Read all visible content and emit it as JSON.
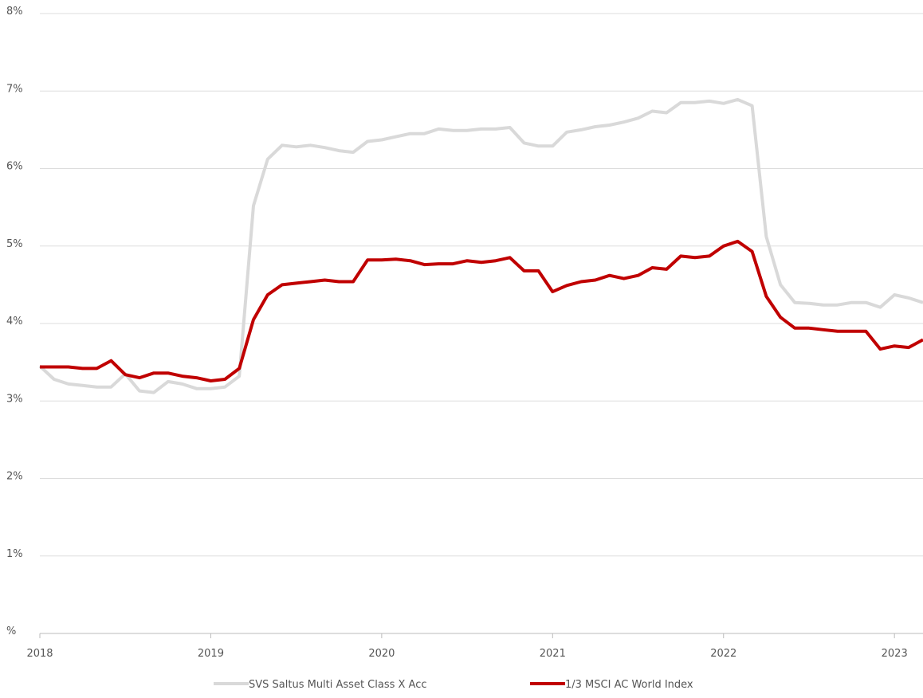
{
  "chart_data": {
    "type": "line",
    "x": [
      2018,
      2018.083,
      2018.167,
      2018.25,
      2018.333,
      2018.417,
      2018.5,
      2018.583,
      2018.667,
      2018.75,
      2018.833,
      2018.917,
      2019,
      2019.083,
      2019.167,
      2019.25,
      2019.333,
      2019.417,
      2019.5,
      2019.583,
      2019.667,
      2019.75,
      2019.833,
      2019.917,
      2020,
      2020.083,
      2020.167,
      2020.25,
      2020.333,
      2020.417,
      2020.5,
      2020.583,
      2020.667,
      2020.75,
      2020.833,
      2020.917,
      2021,
      2021.083,
      2021.167,
      2021.25,
      2021.333,
      2021.417,
      2021.5,
      2021.583,
      2021.667,
      2021.75,
      2021.833,
      2021.917,
      2022,
      2022.083,
      2022.167,
      2022.25,
      2022.333,
      2022.417,
      2022.5,
      2022.583,
      2022.667,
      2022.75,
      2022.833,
      2022.917,
      2023,
      2023.083,
      2023.167
    ],
    "series": [
      {
        "name": "SVS Saltus Multi Asset Class X Acc",
        "color": "#d9d9d9",
        "values": [
          3.45,
          3.28,
          3.22,
          3.2,
          3.18,
          3.18,
          3.35,
          3.13,
          3.11,
          3.25,
          3.22,
          3.16,
          3.16,
          3.18,
          3.32,
          5.52,
          6.12,
          6.3,
          6.28,
          6.3,
          6.27,
          6.23,
          6.21,
          6.35,
          6.37,
          6.41,
          6.45,
          6.45,
          6.51,
          6.49,
          6.49,
          6.51,
          6.51,
          6.53,
          6.33,
          6.29,
          6.29,
          6.47,
          6.5,
          6.54,
          6.56,
          6.6,
          6.65,
          6.74,
          6.72,
          6.85,
          6.85,
          6.87,
          6.84,
          6.89,
          6.81,
          5.12,
          4.5,
          4.27,
          4.26,
          4.24,
          4.24,
          4.27,
          4.27,
          4.21,
          4.37,
          4.33,
          4.27
        ]
      },
      {
        "name": "1/3 MSCI AC World Index",
        "color": "#c00000",
        "values": [
          3.44,
          3.44,
          3.44,
          3.42,
          3.42,
          3.52,
          3.34,
          3.3,
          3.36,
          3.36,
          3.32,
          3.3,
          3.26,
          3.28,
          3.42,
          4.05,
          4.37,
          4.5,
          4.52,
          4.54,
          4.56,
          4.54,
          4.54,
          4.82,
          4.82,
          4.83,
          4.81,
          4.76,
          4.77,
          4.77,
          4.81,
          4.79,
          4.81,
          4.85,
          4.68,
          4.68,
          4.41,
          4.49,
          4.54,
          4.56,
          4.62,
          4.58,
          4.62,
          4.72,
          4.7,
          4.87,
          4.85,
          4.87,
          5.0,
          5.06,
          4.93,
          4.35,
          4.08,
          3.94,
          3.94,
          3.92,
          3.9,
          3.9,
          3.9,
          3.67,
          3.71,
          3.69,
          3.79
        ]
      }
    ],
    "xlim": [
      2018,
      2023.167
    ],
    "xticks": [
      2018,
      2019,
      2020,
      2021,
      2022,
      2023
    ],
    "ylim": [
      0,
      8
    ],
    "yticks": [
      {
        "value": 0,
        "label": "%"
      },
      {
        "value": 1,
        "label": "1%"
      },
      {
        "value": 2,
        "label": "2%"
      },
      {
        "value": 3,
        "label": "3%"
      },
      {
        "value": 4,
        "label": "4%"
      },
      {
        "value": 5,
        "label": "5%"
      },
      {
        "value": 6,
        "label": "6%"
      },
      {
        "value": 7,
        "label": "7%"
      },
      {
        "value": 8,
        "label": "8%"
      }
    ],
    "grid": true,
    "legend": "bottom"
  }
}
